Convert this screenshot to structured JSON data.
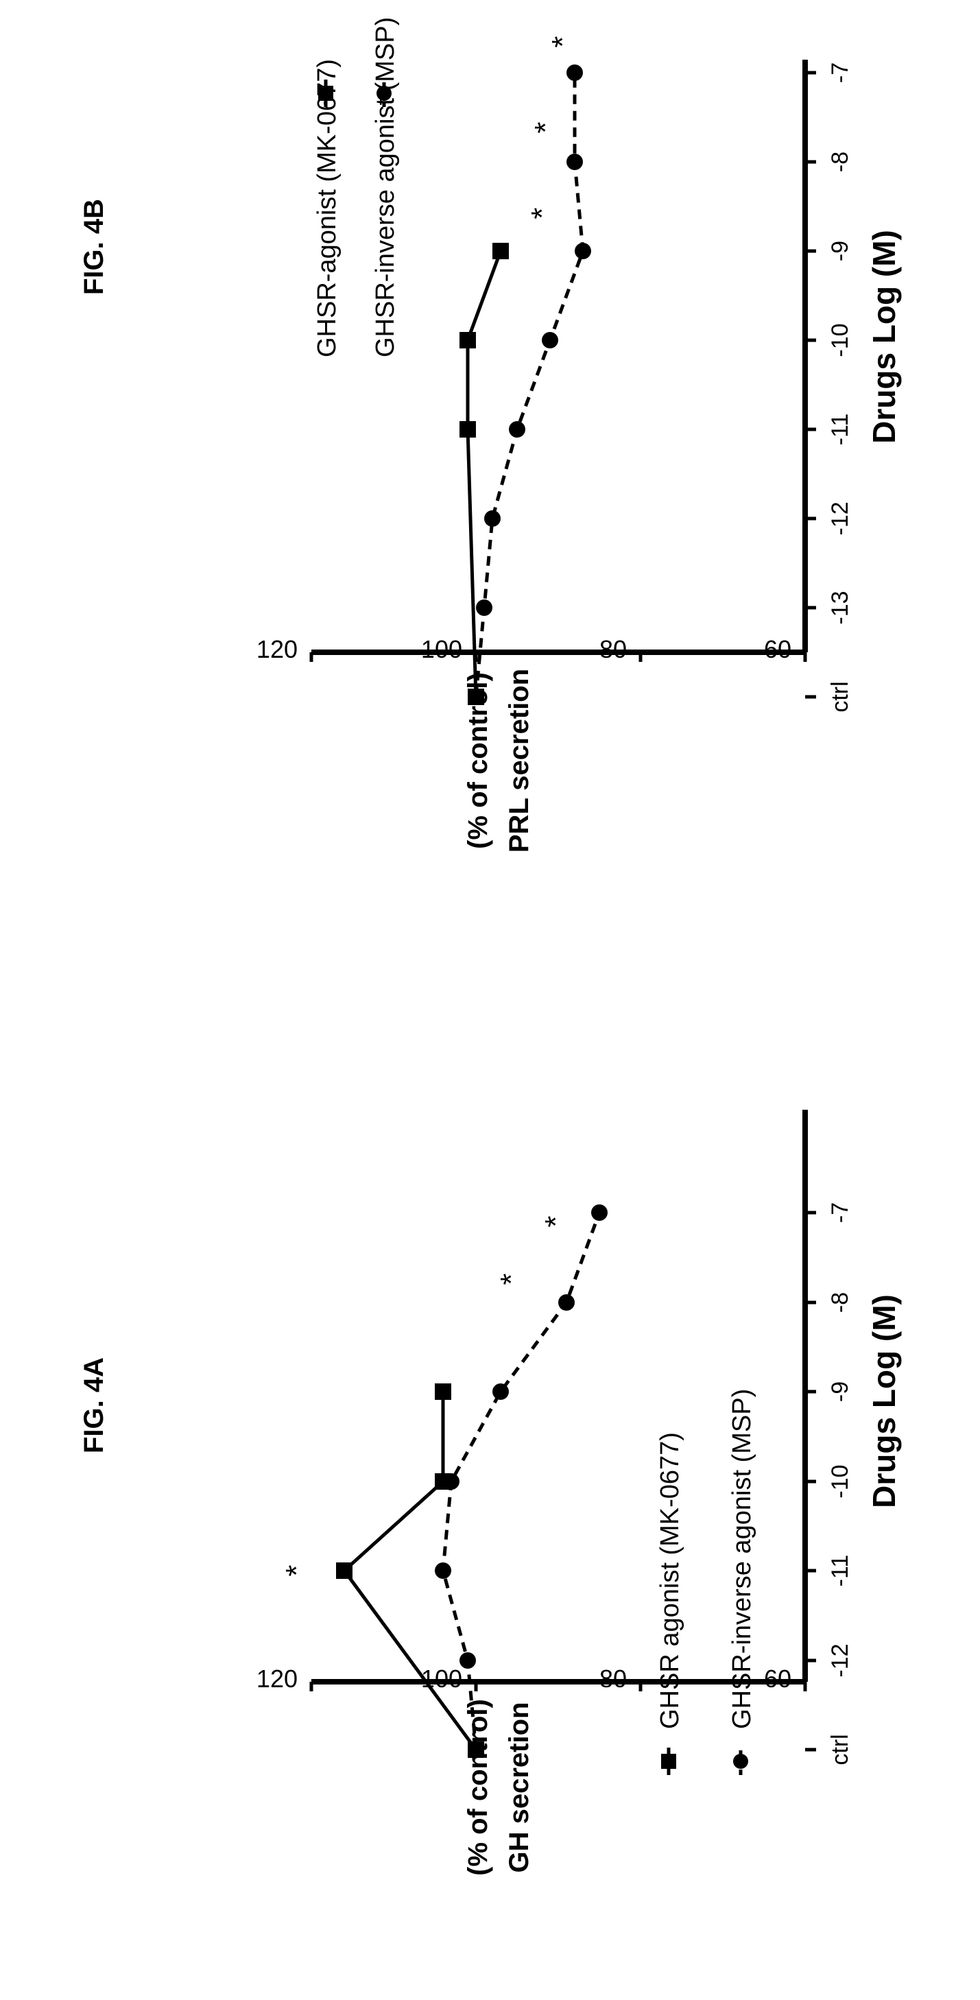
{
  "figures": [
    {
      "label": "FIG. 4A"
    },
    {
      "label": "FIG. 4B"
    }
  ],
  "colors": {
    "ink": "#000000",
    "background": "#ffffff"
  },
  "chart_data": [
    {
      "type": "line",
      "title": "FIG. 4A",
      "xlabel": "Drugs Log (M)",
      "ylabel": "GH secretion",
      "ylabel2": "(% of control)",
      "categories": [
        "ctrl",
        "-12",
        "-11",
        "-10",
        "-9",
        "-8",
        "-7"
      ],
      "ylim": [
        60,
        120
      ],
      "yticks": [
        60,
        80,
        100,
        120
      ],
      "legend_position": "bottom-left",
      "grid": false,
      "series": [
        {
          "name": "GHSR agonist (MK-0677)",
          "line_style": "solid",
          "x": [
            "ctrl",
            "-11",
            "-10",
            "-9"
          ],
          "values": [
            100,
            116,
            104,
            104
          ],
          "significant": [
            false,
            true,
            false,
            false
          ]
        },
        {
          "name": "GHSR-inverse agonist (MSP)",
          "line_style": "dashed",
          "x": [
            "ctrl",
            "-12",
            "-11",
            "-10",
            "-9",
            "-8",
            "-7"
          ],
          "values": [
            100,
            101,
            104,
            103,
            97,
            89,
            85
          ],
          "significant": [
            false,
            false,
            false,
            false,
            false,
            true,
            true
          ]
        }
      ],
      "annotations": [
        "*",
        "*",
        "*"
      ]
    },
    {
      "type": "line",
      "title": "FIG. 4B",
      "xlabel": "Drugs Log (M)",
      "ylabel": "PRL secretion",
      "ylabel2": "(% of control)",
      "categories": [
        "ctrl",
        "-13",
        "-12",
        "-11",
        "-10",
        "-9",
        "-8",
        "-7"
      ],
      "ylim": [
        60,
        120
      ],
      "yticks": [
        60,
        80,
        100,
        120
      ],
      "legend_position": "top-left",
      "grid": false,
      "series": [
        {
          "name": "GHSR-agonist (MK-0677)",
          "line_style": "solid",
          "x": [
            "ctrl",
            "-11",
            "-10",
            "-9"
          ],
          "values": [
            100,
            101,
            101,
            97
          ],
          "significant": [
            false,
            false,
            false,
            false
          ]
        },
        {
          "name": "GHSR-inverse agonist (MSP)",
          "line_style": "dashed",
          "x": [
            "ctrl",
            "-13",
            "-12",
            "-11",
            "-10",
            "-9",
            "-8",
            "-7"
          ],
          "values": [
            100,
            99,
            98,
            95,
            91,
            87,
            88,
            88
          ],
          "significant": [
            false,
            false,
            false,
            false,
            false,
            true,
            true,
            true
          ]
        }
      ],
      "annotations": [
        "*",
        "*",
        "*"
      ]
    }
  ]
}
